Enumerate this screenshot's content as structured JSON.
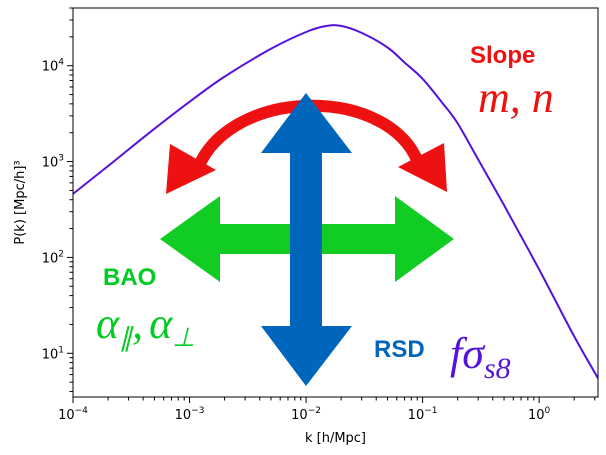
{
  "chart_data": {
    "type": "line",
    "title": "",
    "xlabel": "k  [h/Mpc]",
    "ylabel": "P(k)  [Mpc/h]³",
    "xscale": "log",
    "yscale": "log",
    "xlim": [
      0.0001,
      3.2
    ],
    "ylim": [
      3.5,
      40000
    ],
    "x_ticks": [
      {
        "value": 0.0001,
        "base": "10",
        "exp": "−4"
      },
      {
        "value": 0.001,
        "base": "10",
        "exp": "−3"
      },
      {
        "value": 0.01,
        "base": "10",
        "exp": "−2"
      },
      {
        "value": 0.1,
        "base": "10",
        "exp": "−1"
      },
      {
        "value": 1,
        "base": "10",
        "exp": "0"
      }
    ],
    "y_ticks": [
      {
        "value": 10,
        "base": "10",
        "exp": "1"
      },
      {
        "value": 100,
        "base": "10",
        "exp": "2"
      },
      {
        "value": 1000,
        "base": "10",
        "exp": "3"
      },
      {
        "value": 10000,
        "base": "10",
        "exp": "4"
      }
    ],
    "series": [
      {
        "name": "P(k)",
        "color": "#5511dd",
        "x": [
          0.0001,
          0.0002,
          0.0005,
          0.001,
          0.002,
          0.005,
          0.01,
          0.015,
          0.02,
          0.03,
          0.05,
          0.07,
          0.1,
          0.15,
          0.2,
          0.3,
          0.5,
          1.0,
          2.0,
          3.2
        ],
        "y": [
          460,
          900,
          2200,
          4200,
          7700,
          15000,
          22500,
          26000,
          26000,
          22000,
          15500,
          10800,
          7300,
          4000,
          2500,
          1050,
          350,
          75,
          15,
          5.5
        ]
      }
    ],
    "annotations": {
      "slope": {
        "word": "Slope",
        "math": "m, n",
        "color": "#ee1111"
      },
      "bao": {
        "word": "BAO",
        "math_a": "α",
        "sub_a": "∥",
        "comma": ",",
        "math_b": "α",
        "sub_b": "⊥",
        "color": "#00cc22"
      },
      "rsd": {
        "word": "RSD",
        "math_f": "fσ",
        "math_sub": "s8",
        "color": "#0066bb",
        "math_color": "#5511dd"
      }
    },
    "arrows": {
      "curved": {
        "color": "#ee1111"
      },
      "horizontal": {
        "color": "#11cc22"
      },
      "vertical": {
        "color": "#0066bb"
      }
    },
    "grid": false,
    "legend": "none"
  }
}
